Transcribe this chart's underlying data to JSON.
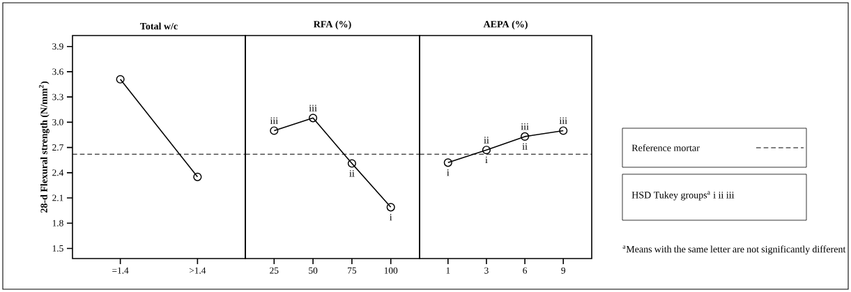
{
  "chart_data": [
    {
      "type": "line",
      "title": "Total w/c",
      "ylabel": "28-d Flexural strength (N/mm$^{2}$)",
      "categories": [
        "=1.4",
        ">1.4"
      ],
      "series": [
        {
          "color": "#000000",
          "values": [
            3.51,
            2.35
          ]
        }
      ],
      "ylim": [
        1.38,
        4.03
      ],
      "yticks": [
        1.5,
        1.8,
        2.1,
        2.4,
        2.7,
        {
          "value": 3.0,
          "label": "3.0"
        },
        3.3,
        3.6,
        3.9
      ],
      "marker": "circle",
      "line_style": "solid",
      "ref_lines": [
        {
          "axis": "y",
          "value": 2.62,
          "line_style": "dashed",
          "color": "#000000"
        }
      ]
    },
    {
      "type": "line",
      "title": "RFA (%)",
      "categories": [
        "25",
        "50",
        "75",
        "100"
      ],
      "series": [
        {
          "color": "#000000",
          "values": [
            2.9,
            3.05,
            2.51,
            1.99
          ]
        }
      ],
      "ylim": [
        1.38,
        4.03
      ],
      "tick_labels": "x",
      "marker": "circle",
      "line_style": "solid",
      "ref_lines": [
        {
          "axis": "y",
          "value": 2.62,
          "line_style": "dashed",
          "color": "#000000"
        }
      ],
      "annotations": [
        {
          "text": "iii",
          "x": "25",
          "y": 2.9
        },
        {
          "text": "iii",
          "x": "50",
          "y": 3.05
        },
        {
          "text": "ii",
          "x": "75",
          "y": 2.51
        },
        {
          "text": "i",
          "x": "100",
          "y": 1.99
        }
      ]
    },
    {
      "type": "line",
      "title": "AEPA (%)",
      "categories": [
        "1",
        "3",
        "6",
        "9"
      ],
      "series": [
        {
          "color": "#000000",
          "values": [
            2.52,
            2.67,
            2.83,
            2.9
          ]
        }
      ],
      "ylim": [
        1.38,
        4.03
      ],
      "tick_labels": "x",
      "marker": "circle",
      "line_style": "solid",
      "ref_lines": [
        {
          "axis": "y",
          "value": 2.62,
          "line_style": "dashed",
          "color": "#000000",
          "label": "Reference mortar"
        }
      ],
      "annotations": [
        {
          "text": "i",
          "x": "1",
          "y": 2.52
        },
        {
          "text": "ii",
          "x": "3",
          "y": 2.67
        },
        {
          "text": "i",
          "x": "3",
          "y": 2.67
        },
        {
          "text": "iii",
          "x": "6",
          "y": 2.83
        },
        {
          "text": "ii",
          "x": "6",
          "y": 2.83
        },
        {
          "text": "iii",
          "x": "9",
          "y": 2.9
        },
        "HSD Tukey groups$^{a}$  i  ii  iii",
        "$^{a}$Means with the same letter are not significantly different"
      ]
    }
  ]
}
